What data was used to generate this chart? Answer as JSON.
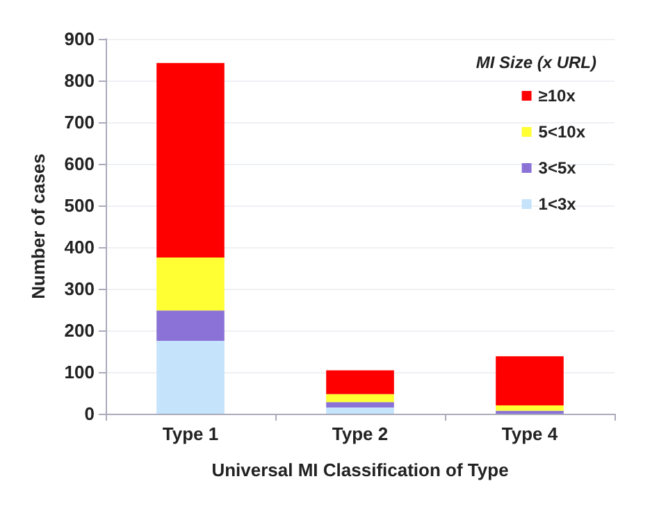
{
  "chart_data": {
    "type": "bar",
    "stacked": true,
    "xlabel": "Universal MI Classification of Type",
    "ylabel": "Number of cases",
    "legend_title": "MI Size (x URL)",
    "legend": "top right",
    "grid": "y",
    "categories": [
      "Type 1",
      "Type 2",
      "Type 4"
    ],
    "ylim": [
      0,
      900
    ],
    "yticks": [
      0,
      100,
      200,
      300,
      400,
      500,
      600,
      700,
      800,
      900
    ],
    "series": [
      {
        "name": "1<3x",
        "color": "#c5e3fa",
        "values": [
          175,
          15,
          null
        ]
      },
      {
        "name": "3<5x",
        "color": "#8b72d6",
        "values": [
          73,
          13,
          7
        ]
      },
      {
        "name": "5<10x",
        "color": "#ffff33",
        "values": [
          127,
          19,
          13
        ]
      },
      {
        "name": "≥10x",
        "color": "#ff0000",
        "values": [
          467,
          57,
          118
        ]
      }
    ]
  }
}
